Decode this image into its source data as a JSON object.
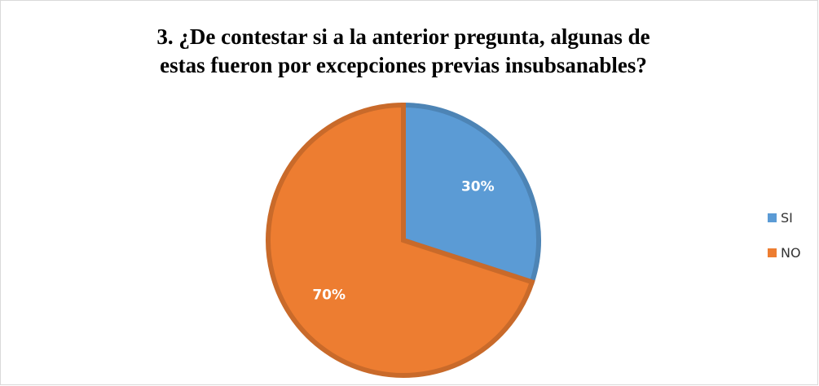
{
  "chart_data": {
    "type": "pie",
    "title": [
      "3. ¿De contestar si a la anterior pregunta, algunas de",
      "estas fueron por excepciones previas insubsanables?"
    ],
    "categories": [
      "SI",
      "NO"
    ],
    "values": [
      30,
      70
    ],
    "value_labels": [
      "30%",
      "70%"
    ],
    "colors": [
      "#5b9bd5",
      "#ed7d31"
    ],
    "legend": "right"
  }
}
